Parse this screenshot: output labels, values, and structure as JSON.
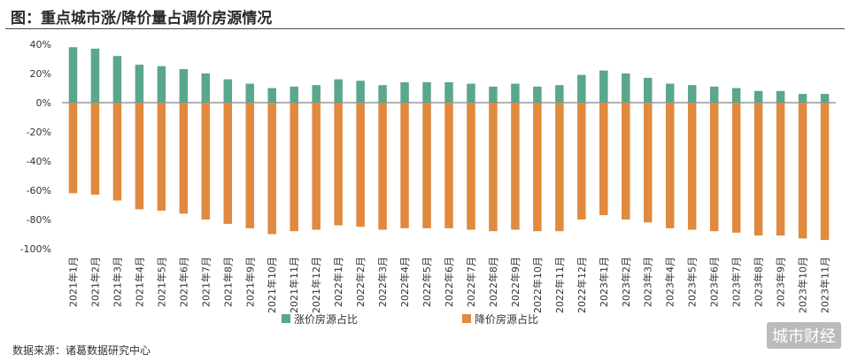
{
  "title": "图：重点城市涨/降价量占调价房源情况",
  "source": "数据来源：诸葛数据研究中心",
  "watermark": "城市财经",
  "colors": {
    "up": "#5aa68e",
    "down": "#e0893f",
    "axis": "#666666"
  },
  "chart_data": {
    "type": "bar",
    "categories": [
      "2021年1月",
      "2021年2月",
      "2021年3月",
      "2021年4月",
      "2021年5月",
      "2021年6月",
      "2021年7月",
      "2021年8月",
      "2021年9月",
      "2021年10月",
      "2021年11月",
      "2021年12月",
      "2022年1月",
      "2022年2月",
      "2022年3月",
      "2022年4月",
      "2022年5月",
      "2022年6月",
      "2022年7月",
      "2022年8月",
      "2022年9月",
      "2022年10月",
      "2022年11月",
      "2022年12月",
      "2023年1月",
      "2023年2月",
      "2023年3月",
      "2023年4月",
      "2023年5月",
      "2023年6月",
      "2023年7月",
      "2023年8月",
      "2023年9月",
      "2023年10月",
      "2023年11月"
    ],
    "series": [
      {
        "name": "涨价房源占比",
        "values": [
          38,
          37,
          32,
          26,
          25,
          23,
          20,
          16,
          13,
          10,
          11,
          12,
          16,
          15,
          12,
          14,
          14,
          14,
          13,
          11,
          13,
          11,
          12,
          19,
          22,
          20,
          17,
          13,
          12,
          11,
          10,
          8,
          8,
          6,
          6
        ]
      },
      {
        "name": "降价房源占比",
        "values": [
          -62,
          -63,
          -67,
          -73,
          -74,
          -76,
          -80,
          -83,
          -86,
          -90,
          -88,
          -87,
          -84,
          -85,
          -87,
          -86,
          -86,
          -86,
          -87,
          -88,
          -87,
          -88,
          -88,
          -80,
          -77,
          -80,
          -82,
          -86,
          -87,
          -88,
          -89,
          -91,
          -91,
          -93,
          -94
        ]
      }
    ],
    "yticks": [
      "40%",
      "20%",
      "0%",
      "-20%",
      "-40%",
      "-60%",
      "-80%",
      "-100%"
    ],
    "ylim": [
      -100,
      40
    ],
    "legend": "bottom-center",
    "grid": false,
    "xlabel": "",
    "ylabel": ""
  }
}
